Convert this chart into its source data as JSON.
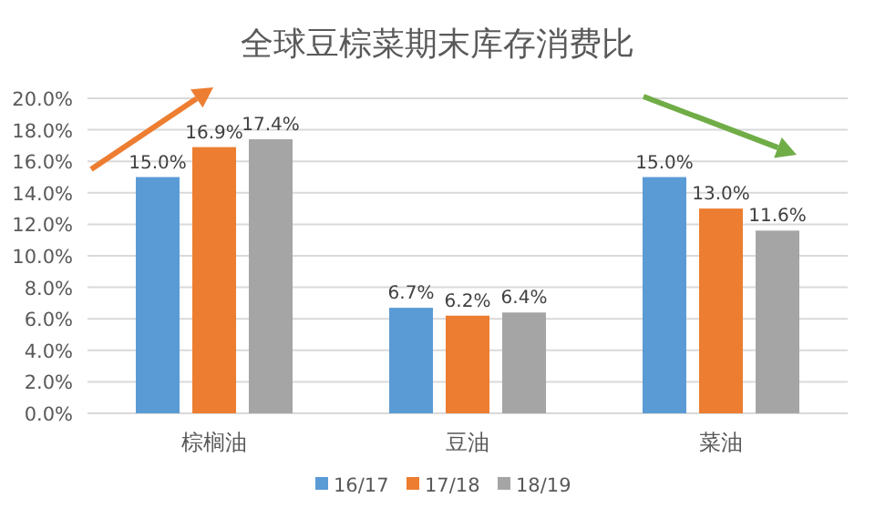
{
  "chart_data": {
    "type": "bar",
    "title": "全球豆棕菜期末库存消费比",
    "categories": [
      "棕榈油",
      "豆油",
      "菜油"
    ],
    "series": [
      {
        "name": "16/17",
        "color": "#5b9bd5",
        "values": [
          15.0,
          6.7,
          15.0
        ],
        "value_labels": [
          "15.0%",
          "6.7%",
          "15.0%"
        ]
      },
      {
        "name": "17/18",
        "color": "#ed7d31",
        "values": [
          16.9,
          6.2,
          13.0
        ],
        "value_labels": [
          "16.9%",
          "6.2%",
          "13.0%"
        ]
      },
      {
        "name": "18/19",
        "color": "#a5a5a5",
        "values": [
          17.4,
          6.4,
          11.6
        ],
        "value_labels": [
          "17.4%",
          "6.4%",
          "11.6%"
        ]
      }
    ],
    "ylim": [
      0,
      20
    ],
    "yticks": [
      {
        "value": 0,
        "label": "0.0%"
      },
      {
        "value": 2,
        "label": "2.0%"
      },
      {
        "value": 4,
        "label": "4.0%"
      },
      {
        "value": 6,
        "label": "6.0%"
      },
      {
        "value": 8,
        "label": "8.0%"
      },
      {
        "value": 10,
        "label": "10.0%"
      },
      {
        "value": 12,
        "label": "12.0%"
      },
      {
        "value": 14,
        "label": "14.0%"
      },
      {
        "value": 16,
        "label": "16.0%"
      },
      {
        "value": 18,
        "label": "18.0%"
      },
      {
        "value": 20,
        "label": "20.0%"
      }
    ],
    "grid": "y",
    "legend": "bottom"
  }
}
